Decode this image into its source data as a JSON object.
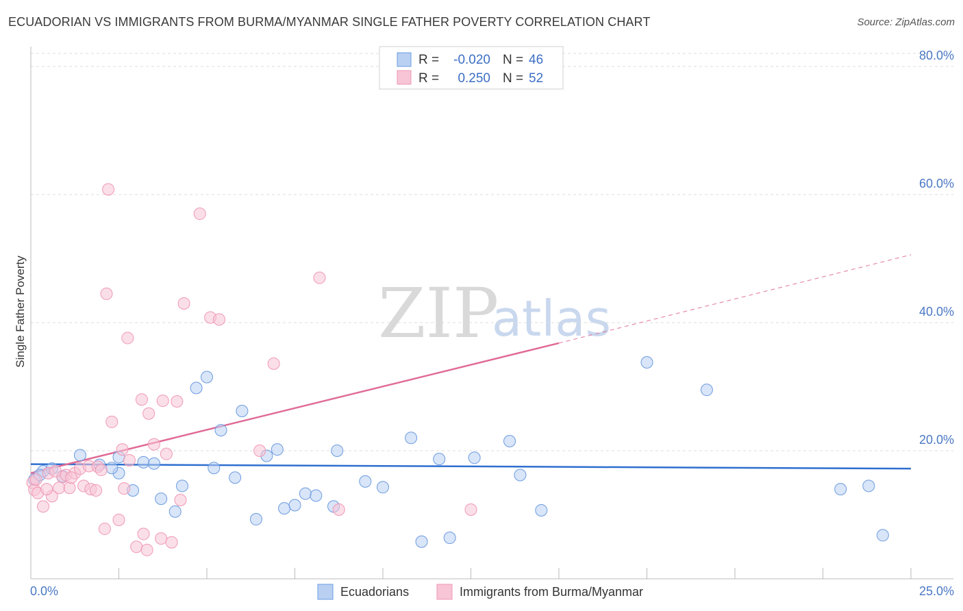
{
  "title": "ECUADORIAN VS IMMIGRANTS FROM BURMA/MYANMAR SINGLE FATHER POVERTY CORRELATION CHART",
  "source": "Source: ZipAtlas.com",
  "watermark": {
    "zip": "ZIP",
    "atlas": "atlas"
  },
  "legend": {
    "r_label": "R =",
    "n_label": "N =",
    "series": [
      {
        "r": "-0.020",
        "n": "46"
      },
      {
        "r": "0.250",
        "n": "52"
      }
    ]
  },
  "chart_data": {
    "type": "scatter",
    "title": "ECUADORIAN VS IMMIGRANTS FROM BURMA/MYANMAR SINGLE FATHER POVERTY CORRELATION CHART",
    "xlabel": "",
    "ylabel": "Single Father Poverty",
    "xlim": [
      0,
      25
    ],
    "ylim": [
      0,
      80
    ],
    "x_tick_labels": [
      "0.0%",
      "25.0%"
    ],
    "y_ticks": [
      20,
      40,
      60,
      80
    ],
    "y_tick_labels": [
      "20.0%",
      "40.0%",
      "60.0%",
      "80.0%"
    ],
    "grid": true,
    "legend_position": "top-center",
    "series": [
      {
        "name": "Ecuadorians",
        "color": "#6b9be0",
        "fill": "#b9d0f2",
        "trend": {
          "x": [
            0,
            25
          ],
          "y": [
            17.9,
            17.2
          ],
          "color": "#2e6fcf"
        },
        "points": [
          [
            0.1,
            15.5
          ],
          [
            0.35,
            16.8
          ],
          [
            0.6,
            17.2
          ],
          [
            0.9,
            16.0
          ],
          [
            1.4,
            19.3
          ],
          [
            1.95,
            17.8
          ],
          [
            2.5,
            16.5
          ],
          [
            2.3,
            17.3
          ],
          [
            2.5,
            19.0
          ],
          [
            2.9,
            13.8
          ],
          [
            3.2,
            18.2
          ],
          [
            3.5,
            18.0
          ],
          [
            3.7,
            12.5
          ],
          [
            4.1,
            10.5
          ],
          [
            4.3,
            14.5
          ],
          [
            4.7,
            29.8
          ],
          [
            5.0,
            31.5
          ],
          [
            5.2,
            17.3
          ],
          [
            5.4,
            23.2
          ],
          [
            5.8,
            15.8
          ],
          [
            6.0,
            26.2
          ],
          [
            6.4,
            9.3
          ],
          [
            6.7,
            19.2
          ],
          [
            7.0,
            20.2
          ],
          [
            7.2,
            11.0
          ],
          [
            7.5,
            11.5
          ],
          [
            7.8,
            13.3
          ],
          [
            8.1,
            13.0
          ],
          [
            8.6,
            11.3
          ],
          [
            8.7,
            20.0
          ],
          [
            9.5,
            15.2
          ],
          [
            10.0,
            14.3
          ],
          [
            10.8,
            22.0
          ],
          [
            11.1,
            5.8
          ],
          [
            11.6,
            18.7
          ],
          [
            11.9,
            6.4
          ],
          [
            12.6,
            18.9
          ],
          [
            13.6,
            21.5
          ],
          [
            13.9,
            16.2
          ],
          [
            14.5,
            10.7
          ],
          [
            17.5,
            33.8
          ],
          [
            19.2,
            29.5
          ],
          [
            23.0,
            14.0
          ],
          [
            23.8,
            14.5
          ],
          [
            24.2,
            6.8
          ],
          [
            0.25,
            16.2
          ]
        ]
      },
      {
        "name": "Immigrants from Burma/Myanmar",
        "color": "#ef98b4",
        "fill": "#f7c5d5",
        "trend": {
          "x": [
            0,
            15
          ],
          "y": [
            16.5,
            36.8
          ],
          "color": "#e06b96"
        },
        "trend_dashed": {
          "x": [
            15,
            25
          ],
          "y": [
            36.8,
            50.6
          ]
        },
        "points": [
          [
            0.05,
            15.0
          ],
          [
            0.1,
            13.9
          ],
          [
            0.2,
            13.4
          ],
          [
            0.35,
            11.3
          ],
          [
            0.5,
            16.5
          ],
          [
            0.6,
            12.9
          ],
          [
            0.8,
            14.2
          ],
          [
            0.9,
            15.9
          ],
          [
            1.0,
            16.2
          ],
          [
            1.1,
            14.2
          ],
          [
            1.25,
            16.5
          ],
          [
            1.4,
            17.2
          ],
          [
            1.5,
            14.5
          ],
          [
            1.65,
            17.6
          ],
          [
            1.7,
            14.0
          ],
          [
            1.85,
            13.8
          ],
          [
            1.9,
            17.5
          ],
          [
            2.0,
            17.0
          ],
          [
            2.1,
            7.8
          ],
          [
            2.15,
            44.5
          ],
          [
            2.2,
            60.8
          ],
          [
            2.3,
            24.5
          ],
          [
            2.5,
            9.2
          ],
          [
            2.6,
            20.2
          ],
          [
            2.65,
            14.1
          ],
          [
            2.75,
            37.6
          ],
          [
            2.8,
            18.5
          ],
          [
            3.0,
            5.0
          ],
          [
            3.15,
            28.0
          ],
          [
            3.2,
            7.0
          ],
          [
            3.3,
            4.5
          ],
          [
            3.35,
            25.8
          ],
          [
            3.5,
            21.0
          ],
          [
            3.7,
            6.3
          ],
          [
            3.75,
            27.8
          ],
          [
            3.85,
            19.5
          ],
          [
            4.0,
            5.7
          ],
          [
            4.15,
            27.7
          ],
          [
            4.25,
            12.3
          ],
          [
            4.35,
            43.0
          ],
          [
            4.8,
            57.0
          ],
          [
            5.1,
            40.8
          ],
          [
            5.35,
            40.5
          ],
          [
            6.5,
            20.0
          ],
          [
            6.9,
            33.6
          ],
          [
            8.2,
            47.0
          ],
          [
            8.75,
            10.8
          ],
          [
            12.5,
            10.8
          ],
          [
            0.15,
            15.5
          ],
          [
            0.45,
            14.0
          ],
          [
            1.15,
            15.8
          ],
          [
            0.7,
            16.8
          ]
        ]
      }
    ]
  }
}
